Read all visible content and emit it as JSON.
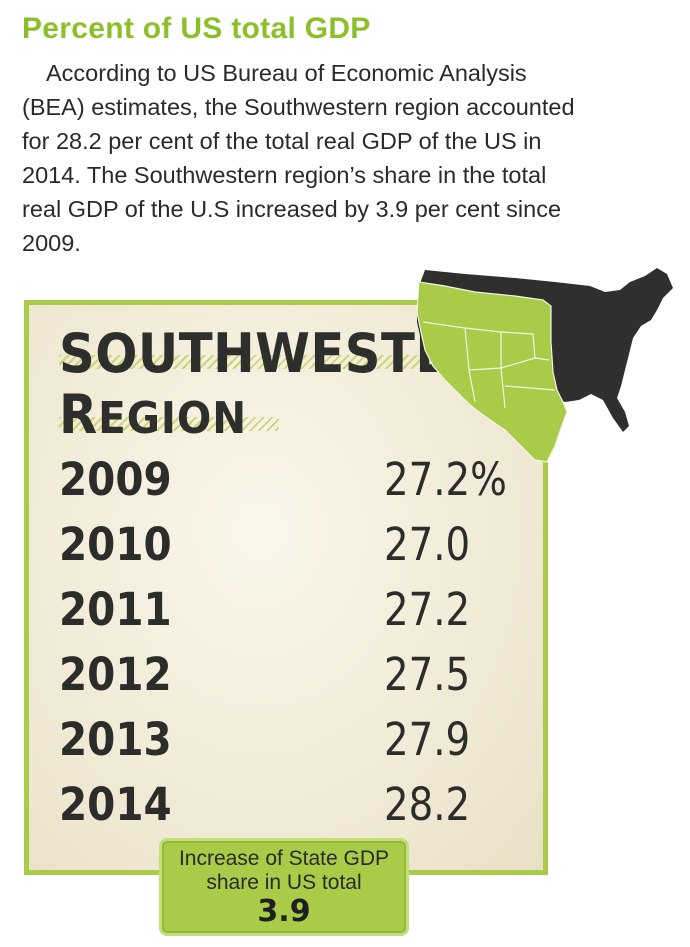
{
  "header": {
    "title": "Percent of US total GDP",
    "body": "According to US Bureau of Economic Analysis (BEA) estimates, the Southwestern region accounted for 28.2 per cent of the total real GDP of the US in 2014. The Southwestern region’s share in the total real GDP of the U.S increased by 3.9 per cent since 2009."
  },
  "panel": {
    "title_line1": "SOUTHWESTERN",
    "title_line2_initial": "R",
    "title_line2_rest": "EGION",
    "rows": [
      {
        "year": "2009",
        "value": "27.2%"
      },
      {
        "year": "2010",
        "value": "27.0"
      },
      {
        "year": "2011",
        "value": "27.2"
      },
      {
        "year": "2012",
        "value": "27.5"
      },
      {
        "year": "2013",
        "value": "27.9"
      },
      {
        "year": "2014",
        "value": "28.2"
      }
    ]
  },
  "badge": {
    "label": "Increase of State GDP share in US total",
    "value": "3.9"
  },
  "colors": {
    "accent_green": "#a8cc48",
    "heading_green": "#8cbf2a",
    "map_dark": "#2f2f2d",
    "panel_bg": "#f3edda"
  },
  "icons": {
    "map": "us-map-southwest-highlight-icon"
  }
}
